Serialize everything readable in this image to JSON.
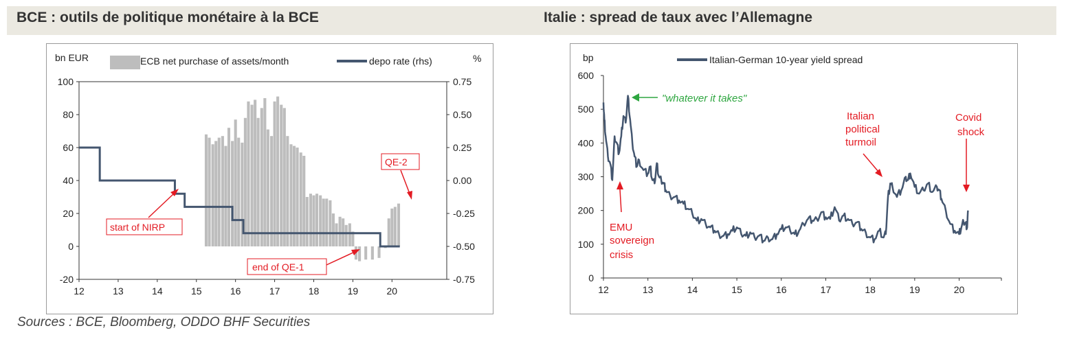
{
  "titles": {
    "left": "BCE : outils de politique monétaire à la BCE",
    "right": "Italie : spread de taux avec l’Allemagne"
  },
  "sources": "Sources : BCE, Bloomberg, ODDO BHF Securities",
  "colors": {
    "bars": "#bdbdbd",
    "line": "#44566f",
    "annotation": "#e31b23",
    "green": "#2ea640",
    "title_bg": "#ebe9e1"
  },
  "chart_data": [
    {
      "type": "bar",
      "left_axis_label": "bn EUR",
      "right_axis_label": "%",
      "xticks": [
        "12",
        "13",
        "14",
        "15",
        "16",
        "17",
        "18",
        "19",
        "20"
      ],
      "xlim": [
        12,
        21.4
      ],
      "ylim": [
        -20,
        100
      ],
      "yticks": [
        -20,
        0,
        20,
        40,
        60,
        80,
        100
      ],
      "y2lim": [
        -0.75,
        0.75
      ],
      "y2ticks": [
        "0.75",
        "0.50",
        "0.25",
        "0.00",
        "-0.25",
        "-0.50",
        "-0.75"
      ],
      "legend": [
        "ECB net purchase of assets/month",
        "depo rate (rhs)"
      ],
      "series": [
        {
          "name": "ECB net purchase of assets/month",
          "kind": "bar",
          "x": [
            15.25,
            15.33,
            15.42,
            15.5,
            15.58,
            15.67,
            15.75,
            15.83,
            15.92,
            16.0,
            16.08,
            16.17,
            16.25,
            16.33,
            16.42,
            16.5,
            16.58,
            16.67,
            16.75,
            16.83,
            16.92,
            17.0,
            17.08,
            17.17,
            17.25,
            17.33,
            17.42,
            17.5,
            17.58,
            17.67,
            17.75,
            17.83,
            17.92,
            18.0,
            18.08,
            18.17,
            18.25,
            18.33,
            18.42,
            18.5,
            18.58,
            18.67,
            18.75,
            18.83,
            18.92,
            19.0,
            19.08,
            19.17,
            19.33,
            19.5,
            19.67,
            19.83,
            19.92,
            20.0,
            20.08,
            20.17
          ],
          "values": [
            68,
            66,
            62,
            64,
            66,
            67,
            61,
            72,
            64,
            77,
            66,
            63,
            78,
            88,
            86,
            89,
            78,
            84,
            90,
            71,
            67,
            88,
            91,
            86,
            84,
            67,
            62,
            61,
            60,
            57,
            55,
            30,
            32,
            31,
            32,
            31,
            29,
            29,
            28,
            20,
            14,
            18,
            17,
            13,
            14,
            9,
            -8,
            -9,
            -8,
            -8,
            -7,
            -1,
            17,
            23,
            24,
            26
          ]
        },
        {
          "name": "depo rate (rhs)",
          "kind": "step",
          "x": [
            12.0,
            12.53,
            14.45,
            14.7,
            15.92,
            16.2,
            19.7,
            20.2
          ],
          "values": [
            0.25,
            0.0,
            -0.1,
            -0.2,
            -0.3,
            -0.4,
            -0.5,
            -0.5
          ]
        }
      ],
      "annotations": [
        {
          "text": "start of NIRP"
        },
        {
          "text": "end of QE-1"
        },
        {
          "text": "QE-2"
        }
      ]
    },
    {
      "type": "line",
      "left_axis_label": "bp",
      "xticks": [
        "12",
        "13",
        "14",
        "15",
        "16",
        "17",
        "18",
        "19",
        "20"
      ],
      "xlim": [
        12,
        20.95
      ],
      "ylim": [
        0,
        600
      ],
      "yticks": [
        0,
        100,
        200,
        300,
        400,
        500,
        600
      ],
      "legend": [
        "Italian-German 10-year yield spread"
      ],
      "series": [
        {
          "name": "Italian-German 10-year yield spread",
          "x": [
            12.0,
            12.02,
            12.05,
            12.1,
            12.15,
            12.2,
            12.25,
            12.3,
            12.35,
            12.4,
            12.45,
            12.5,
            12.55,
            12.6,
            12.65,
            12.7,
            12.75,
            12.8,
            12.9,
            13.0,
            13.05,
            13.1,
            13.15,
            13.2,
            13.25,
            13.3,
            13.35,
            13.4,
            13.5,
            13.6,
            13.7,
            13.8,
            13.9,
            14.0,
            14.1,
            14.2,
            14.3,
            14.4,
            14.5,
            14.6,
            14.7,
            14.8,
            14.9,
            15.0,
            15.1,
            15.2,
            15.3,
            15.4,
            15.5,
            15.6,
            15.7,
            15.8,
            15.9,
            16.0,
            16.1,
            16.2,
            16.3,
            16.4,
            16.5,
            16.6,
            16.7,
            16.8,
            16.9,
            17.0,
            17.1,
            17.2,
            17.3,
            17.4,
            17.5,
            17.6,
            17.7,
            17.8,
            17.9,
            18.0,
            18.1,
            18.2,
            18.3,
            18.35,
            18.4,
            18.45,
            18.5,
            18.6,
            18.7,
            18.8,
            18.85,
            18.9,
            19.0,
            19.1,
            19.2,
            19.3,
            19.4,
            19.5,
            19.55,
            19.6,
            19.7,
            19.8,
            19.9,
            20.0,
            20.05,
            20.1,
            20.15,
            20.18,
            20.2
          ],
          "values": [
            520,
            470,
            420,
            360,
            340,
            290,
            420,
            400,
            370,
            420,
            480,
            460,
            540,
            470,
            400,
            360,
            330,
            350,
            320,
            310,
            330,
            290,
            280,
            340,
            300,
            290,
            280,
            260,
            245,
            240,
            230,
            220,
            205,
            190,
            170,
            175,
            160,
            150,
            140,
            130,
            125,
            130,
            140,
            150,
            130,
            125,
            135,
            120,
            125,
            110,
            120,
            115,
            130,
            145,
            150,
            140,
            130,
            140,
            160,
            175,
            170,
            175,
            195,
            180,
            175,
            210,
            170,
            185,
            175,
            160,
            165,
            145,
            135,
            120,
            115,
            140,
            120,
            130,
            240,
            280,
            270,
            240,
            260,
            300,
            290,
            310,
            270,
            250,
            260,
            280,
            255,
            270,
            260,
            235,
            200,
            160,
            140,
            130,
            150,
            165,
            160,
            150,
            200
          ]
        }
      ],
      "annotations": [
        {
          "text": "\"whatever it takes\""
        },
        {
          "text": "Italian"
        },
        {
          "text": "political"
        },
        {
          "text": "turmoil"
        },
        {
          "text": "Covid"
        },
        {
          "text": "shock"
        },
        {
          "text": "EMU"
        },
        {
          "text": "sovereign"
        },
        {
          "text": "crisis"
        }
      ]
    }
  ]
}
